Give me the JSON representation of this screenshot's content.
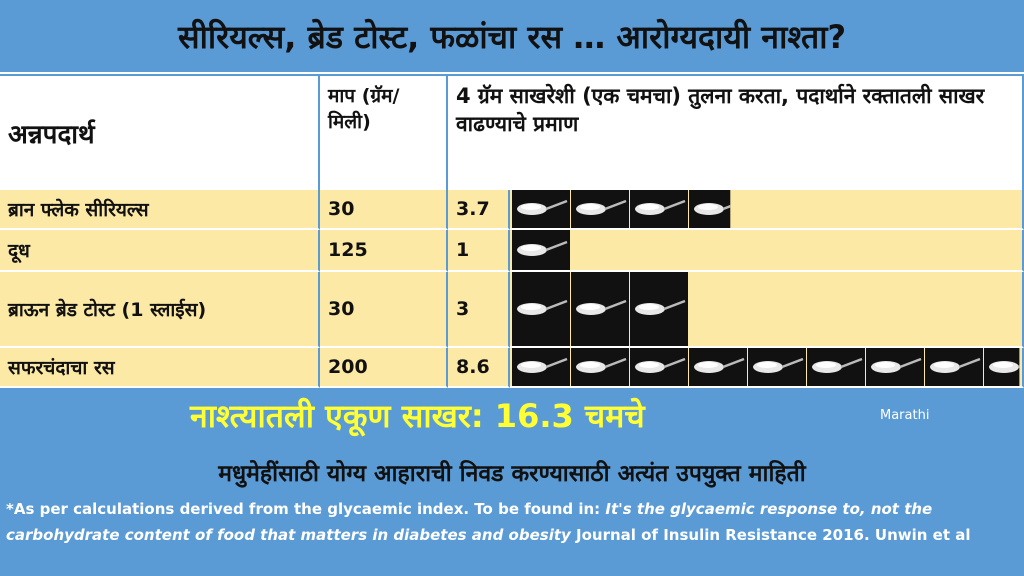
{
  "title": "सीरियल्स, ब्रेड टोस्ट, फळांचा रस … आरोग्यदायी नाश्ता?",
  "table": {
    "headers": [
      "अन्नपदार्थ",
      "माप (ग्रॅम/ मिली)",
      "4 ग्रॅम साखरेशी (एक चमचा) तुलना करता, पदार्थाने रक्तातली साखर वाढण्याचे प्रमाण"
    ],
    "rows": [
      [
        "ब्रान फ्लेक सीरियल्स",
        30,
        3.7
      ],
      [
        "दूध",
        125,
        1
      ],
      [
        "ब्राऊन ब्रेड टोस्ट (1 स्लाईस)",
        30,
        3
      ],
      [
        "सफरचंदाचा रस",
        200,
        8.6
      ]
    ]
  },
  "total": "नाश्त्यातली एकूण साखर: 16.3 चमचे",
  "language": "Marathi",
  "subtitle": "मधुमेहींसाठी योग्य आहाराची निवड करण्यासाठी अत्यंत उपयुक्त माहिती",
  "footnote": [
    "*As per calculations derived from the glycaemic index. To be found in: ",
    "It's the glycaemic response to, not the carbohydrate content of food that matters in diabetes and obesity",
    " Journal of Insulin Resistance 2016. Unwin et al"
  ]
}
